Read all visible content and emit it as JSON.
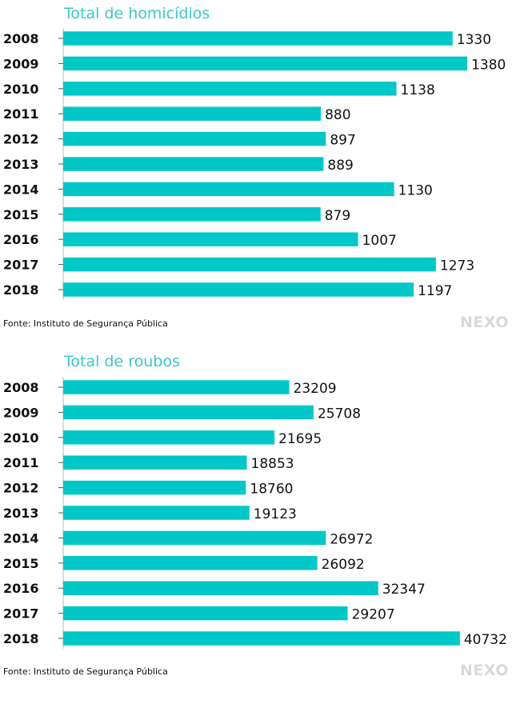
{
  "brand": "NEXO",
  "colors": {
    "bar": "#00c8c8",
    "title": "#3cc8c8",
    "logo": "#d9d9d9",
    "text": "#111111"
  },
  "chart_data": [
    {
      "type": "bar",
      "orientation": "horizontal",
      "title": "Total de homicídios",
      "categories": [
        "2008",
        "2009",
        "2010",
        "2011",
        "2012",
        "2013",
        "2014",
        "2015",
        "2016",
        "2017",
        "2018"
      ],
      "values": [
        1330,
        1380,
        1138,
        880,
        897,
        889,
        1130,
        879,
        1007,
        1273,
        1197
      ],
      "xlim": [
        0,
        1530
      ],
      "source": "Fonte: Instituto de Segurança Pública",
      "brand": "NEXO"
    },
    {
      "type": "bar",
      "orientation": "horizontal",
      "title": "Total de roubos",
      "categories": [
        "2008",
        "2009",
        "2010",
        "2011",
        "2012",
        "2013",
        "2014",
        "2015",
        "2016",
        "2017",
        "2018"
      ],
      "values": [
        23209,
        25708,
        21695,
        18853,
        18760,
        19123,
        26972,
        26092,
        32347,
        29207,
        40732
      ],
      "xlim": [
        0,
        46000
      ],
      "source": "Fonte: Instituto de Segurança Pública",
      "brand": "NEXO"
    }
  ]
}
